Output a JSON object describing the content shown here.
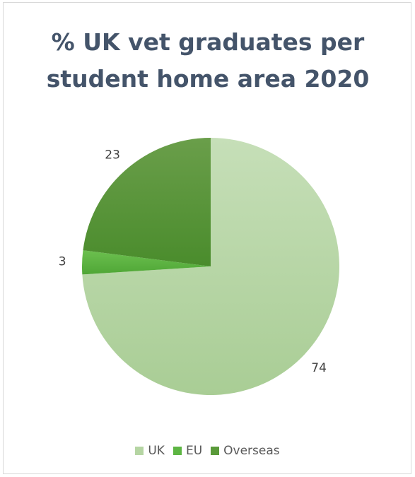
{
  "chart_data": {
    "type": "pie",
    "title": "% UK vet graduates per student home area 2020",
    "title_lines": [
      "% UK vet graduates per",
      "student home area 2020"
    ],
    "categories": [
      "UK",
      "EU",
      "Overseas"
    ],
    "values": [
      74,
      3,
      23
    ],
    "colors": [
      "#b5d5a3",
      "#5db543",
      "#5a9a3a"
    ],
    "legend_position": "bottom",
    "data_labels": [
      "74",
      "3",
      "23"
    ]
  }
}
